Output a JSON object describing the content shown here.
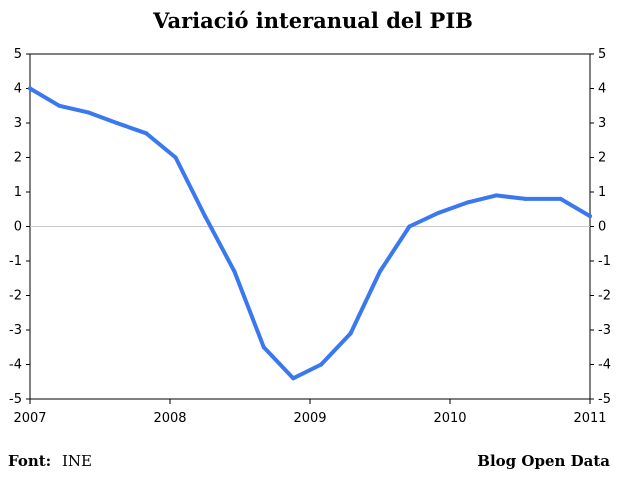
{
  "chart_data": {
    "type": "line",
    "title": "Variació interanual del PIB",
    "xlabel": "",
    "ylabel": "",
    "ylim": [
      -5,
      5
    ],
    "xlim": [
      2007,
      2011
    ],
    "y_ticks": [
      "5",
      "4",
      "3",
      "2",
      "1",
      "0",
      "-1",
      "-2",
      "-3",
      "-4",
      "-5"
    ],
    "x_ticks": [
      "2007",
      "2008",
      "2009",
      "2010",
      "2011"
    ],
    "grid": false,
    "zero_line": true,
    "line_color": "#3a78f0",
    "series": [
      {
        "x": [
          2007.0,
          2007.21,
          2007.42,
          2007.62,
          2007.83,
          2008.04,
          2008.25,
          2008.46,
          2008.67,
          2008.88,
          2009.08,
          2009.29,
          2009.5,
          2009.71,
          2009.92,
          2010.13,
          2010.33,
          2010.54,
          2010.79,
          2011.0
        ],
        "values": [
          4.0,
          3.5,
          3.3,
          3.0,
          2.7,
          2.0,
          0.3,
          -1.3,
          -3.5,
          -4.4,
          -4.0,
          -3.1,
          -1.3,
          0.0,
          0.4,
          0.7,
          0.9,
          0.8,
          0.8,
          0.3
        ]
      }
    ]
  },
  "footer": {
    "source_label": "Font:",
    "source_value": "INE",
    "brand": "Blog Open Data"
  }
}
